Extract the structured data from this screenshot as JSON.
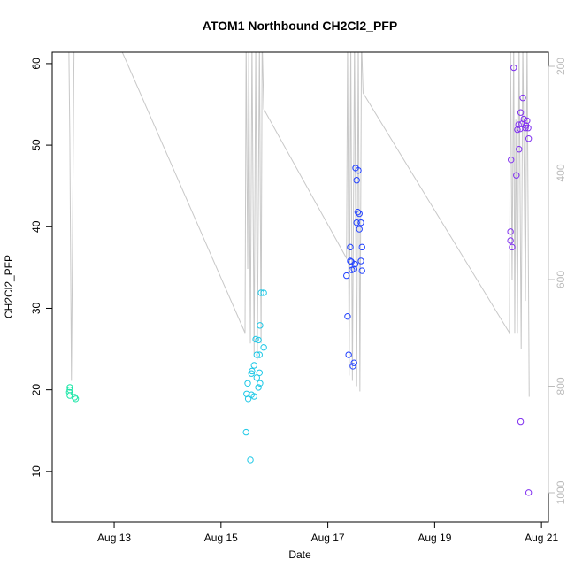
{
  "chart_data": {
    "type": "scatter",
    "title": "ATOM1 Northbound CH2Cl2_PFP",
    "x_label": "Date",
    "y_label": "CH2Cl2_PFP",
    "xlim": [
      11.84,
      21.13
    ],
    "xticks": [
      {
        "value": 13,
        "label": "Aug 13"
      },
      {
        "value": 15,
        "label": "Aug 15"
      },
      {
        "value": 17,
        "label": "Aug 17"
      },
      {
        "value": 19,
        "label": "Aug 19"
      },
      {
        "value": 21,
        "label": "Aug 21"
      }
    ],
    "ylim": [
      3.8,
      61.4
    ],
    "yticks": [
      10,
      20,
      30,
      40,
      50,
      60
    ],
    "y2lim": [
      1054.8,
      173.4
    ],
    "y2ticks": [
      200,
      400,
      600,
      800,
      1000
    ],
    "series": [
      {
        "color": "#1ee6a8",
        "x": [
          12.17,
          12.17,
          12.16,
          12.17,
          12.26,
          12.28
        ],
        "values": [
          20.3,
          20.0,
          19.7,
          19.3,
          19.1,
          18.9
        ]
      },
      {
        "color": "#1ec8e6",
        "x": [
          15.47,
          15.55,
          15.5,
          15.48,
          15.51,
          15.57,
          15.62,
          15.58,
          15.62,
          15.67,
          15.72,
          15.65,
          15.7,
          15.67,
          15.7,
          15.73,
          15.72,
          15.73,
          15.75,
          15.8,
          15.8,
          15.57
        ],
        "values": [
          14.8,
          11.4,
          20.8,
          19.5,
          18.9,
          19.4,
          19.2,
          22.3,
          23.0,
          24.3,
          24.3,
          26.2,
          26.1,
          21.5,
          20.3,
          20.8,
          22.1,
          27.9,
          31.9,
          31.9,
          25.2,
          22.0
        ]
      },
      {
        "color": "#2040ff",
        "x": [
          17.35,
          17.37,
          17.39,
          17.42,
          17.44,
          17.45,
          17.47,
          17.49,
          17.49,
          17.51,
          17.52,
          17.54,
          17.57,
          17.56,
          17.59,
          17.54,
          17.59,
          17.62,
          17.62,
          17.64,
          17.64,
          17.42
        ],
        "values": [
          34.0,
          29.0,
          24.3,
          37.5,
          35.7,
          34.7,
          22.9,
          23.3,
          34.8,
          35.4,
          47.2,
          45.7,
          46.9,
          41.8,
          41.6,
          40.5,
          39.7,
          40.5,
          35.8,
          34.6,
          37.5,
          35.8
        ]
      },
      {
        "color": "#8030f0",
        "x": [
          20.42,
          20.42,
          20.45,
          20.43,
          20.48,
          20.53,
          20.57,
          20.6,
          20.61,
          20.63,
          20.65,
          20.67,
          20.7,
          20.71,
          20.75,
          20.76,
          20.73,
          20.58,
          20.61,
          20.76,
          20.55
        ],
        "values": [
          39.4,
          38.3,
          37.5,
          48.2,
          59.5,
          46.3,
          52.5,
          52.0,
          54.0,
          52.6,
          55.8,
          53.2,
          52.1,
          52.4,
          52.1,
          50.8,
          53.0,
          49.5,
          16.1,
          7.4,
          51.9
        ]
      },
      {
        "type": "line",
        "axis": "y2",
        "color": "#c8c8c8",
        "x": [
          12.15,
          12.17,
          12.2,
          12.25,
          13.05,
          15.45,
          15.47,
          15.5,
          15.52,
          15.55,
          15.58,
          15.62,
          15.65,
          15.68,
          15.72,
          15.75,
          15.77,
          15.8,
          17.35,
          17.37,
          17.4,
          17.43,
          17.46,
          17.5,
          17.54,
          17.57,
          17.6,
          17.63,
          17.66,
          20.4,
          20.42,
          20.45,
          20.48,
          20.5,
          20.52,
          20.55,
          20.58,
          20.62,
          20.65,
          20.7,
          20.73,
          20.77
        ],
        "values": [
          150,
          333,
          790,
          150,
          150,
          700,
          150,
          580,
          150,
          720,
          150,
          740,
          150,
          750,
          150,
          720,
          150,
          280,
          560,
          150,
          780,
          150,
          790,
          150,
          800,
          150,
          810,
          150,
          250,
          700,
          150,
          600,
          150,
          700,
          300,
          700,
          150,
          730,
          150,
          640,
          150,
          820
        ]
      }
    ]
  }
}
